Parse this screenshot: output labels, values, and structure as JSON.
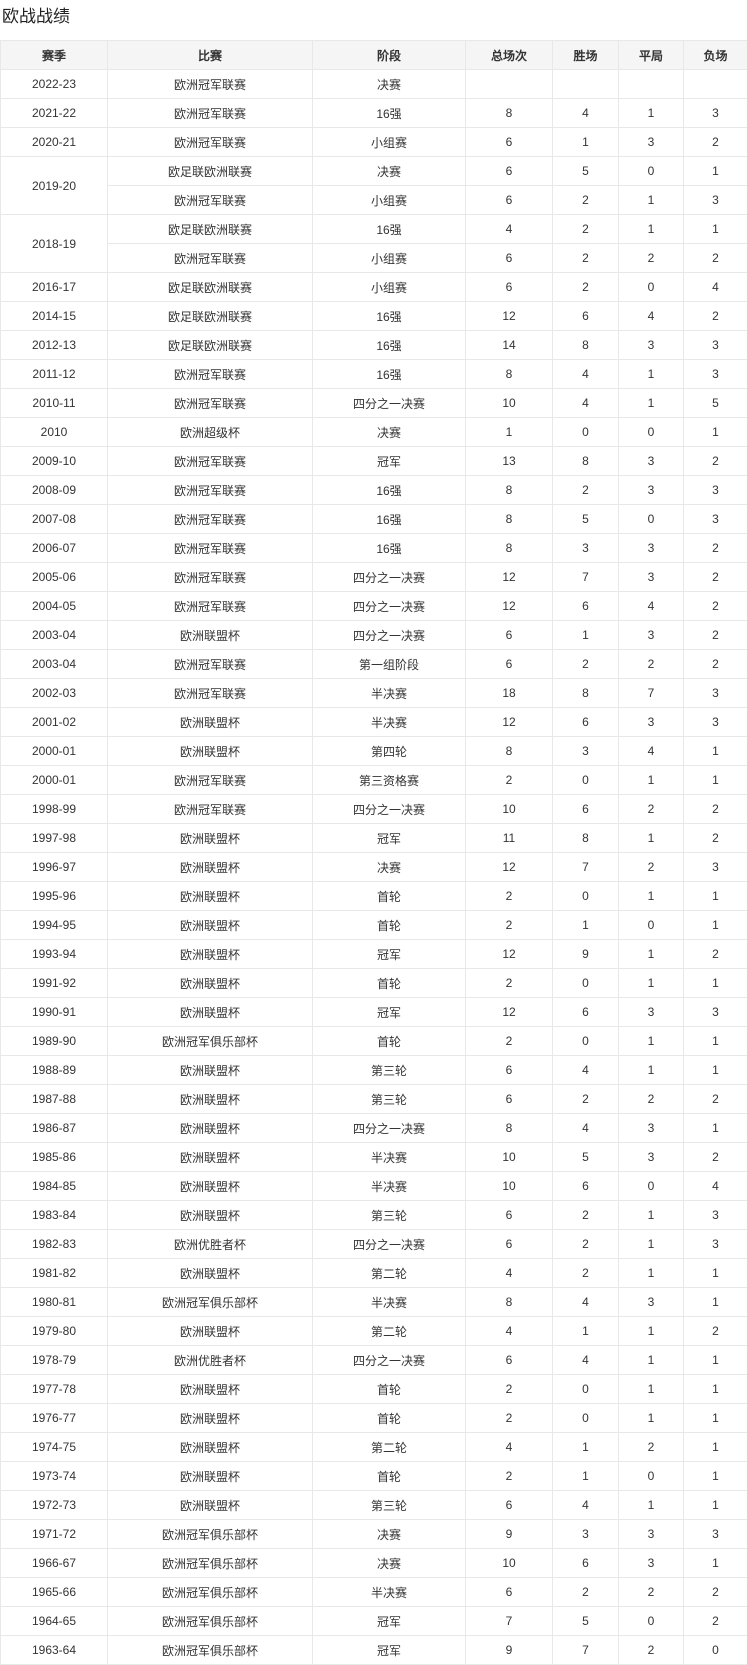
{
  "page": {
    "title": "欧战战绩"
  },
  "colors": {
    "header_background": "#f5f5f5",
    "border": "#e8e8e8",
    "text": "#333333"
  },
  "table": {
    "columns": [
      {
        "key": "season",
        "label": "赛季"
      },
      {
        "key": "competition",
        "label": "比赛"
      },
      {
        "key": "stage",
        "label": "阶段"
      },
      {
        "key": "total",
        "label": "总场次"
      },
      {
        "key": "wins",
        "label": "胜场"
      },
      {
        "key": "draws",
        "label": "平局"
      },
      {
        "key": "losses",
        "label": "负场"
      }
    ],
    "rows": [
      {
        "season": "2022-23",
        "competition": "欧洲冠军联赛",
        "stage": "决赛",
        "total": "",
        "wins": "",
        "draws": "",
        "losses": ""
      },
      {
        "season": "2021-22",
        "competition": "欧洲冠军联赛",
        "stage": "16强",
        "total": "8",
        "wins": "4",
        "draws": "1",
        "losses": "3"
      },
      {
        "season": "2020-21",
        "competition": "欧洲冠军联赛",
        "stage": "小组赛",
        "total": "6",
        "wins": "1",
        "draws": "3",
        "losses": "2"
      },
      {
        "season": "2019-20",
        "season_rowspan": 2,
        "competition": "欧足联欧洲联赛",
        "stage": "决赛",
        "total": "6",
        "wins": "5",
        "draws": "0",
        "losses": "1"
      },
      {
        "season": null,
        "competition": "欧洲冠军联赛",
        "stage": "小组赛",
        "total": "6",
        "wins": "2",
        "draws": "1",
        "losses": "3"
      },
      {
        "season": "2018-19",
        "season_rowspan": 2,
        "competition": "欧足联欧洲联赛",
        "stage": "16强",
        "total": "4",
        "wins": "2",
        "draws": "1",
        "losses": "1"
      },
      {
        "season": null,
        "competition": "欧洲冠军联赛",
        "stage": "小组赛",
        "total": "6",
        "wins": "2",
        "draws": "2",
        "losses": "2"
      },
      {
        "season": "2016-17",
        "competition": "欧足联欧洲联赛",
        "stage": "小组赛",
        "total": "6",
        "wins": "2",
        "draws": "0",
        "losses": "4"
      },
      {
        "season": "2014-15",
        "competition": "欧足联欧洲联赛",
        "stage": "16强",
        "total": "12",
        "wins": "6",
        "draws": "4",
        "losses": "2"
      },
      {
        "season": "2012-13",
        "competition": "欧足联欧洲联赛",
        "stage": "16强",
        "total": "14",
        "wins": "8",
        "draws": "3",
        "losses": "3"
      },
      {
        "season": "2011-12",
        "competition": "欧洲冠军联赛",
        "stage": "16强",
        "total": "8",
        "wins": "4",
        "draws": "1",
        "losses": "3"
      },
      {
        "season": "2010-11",
        "competition": "欧洲冠军联赛",
        "stage": "四分之一决赛",
        "total": "10",
        "wins": "4",
        "draws": "1",
        "losses": "5"
      },
      {
        "season": "2010",
        "competition": "欧洲超级杯",
        "stage": "决赛",
        "total": "1",
        "wins": "0",
        "draws": "0",
        "losses": "1"
      },
      {
        "season": "2009-10",
        "competition": "欧洲冠军联赛",
        "stage": "冠军",
        "total": "13",
        "wins": "8",
        "draws": "3",
        "losses": "2"
      },
      {
        "season": "2008-09",
        "competition": "欧洲冠军联赛",
        "stage": "16强",
        "total": "8",
        "wins": "2",
        "draws": "3",
        "losses": "3"
      },
      {
        "season": "2007-08",
        "competition": "欧洲冠军联赛",
        "stage": "16强",
        "total": "8",
        "wins": "5",
        "draws": "0",
        "losses": "3"
      },
      {
        "season": "2006-07",
        "competition": "欧洲冠军联赛",
        "stage": "16强",
        "total": "8",
        "wins": "3",
        "draws": "3",
        "losses": "2"
      },
      {
        "season": "2005-06",
        "competition": "欧洲冠军联赛",
        "stage": "四分之一决赛",
        "total": "12",
        "wins": "7",
        "draws": "3",
        "losses": "2"
      },
      {
        "season": "2004-05",
        "competition": "欧洲冠军联赛",
        "stage": "四分之一决赛",
        "total": "12",
        "wins": "6",
        "draws": "4",
        "losses": "2"
      },
      {
        "season": "2003-04",
        "competition": "欧洲联盟杯",
        "stage": "四分之一决赛",
        "total": "6",
        "wins": "1",
        "draws": "3",
        "losses": "2"
      },
      {
        "season": "2003-04",
        "competition": "欧洲冠军联赛",
        "stage": "第一组阶段",
        "total": "6",
        "wins": "2",
        "draws": "2",
        "losses": "2"
      },
      {
        "season": "2002-03",
        "competition": "欧洲冠军联赛",
        "stage": "半决赛",
        "total": "18",
        "wins": "8",
        "draws": "7",
        "losses": "3"
      },
      {
        "season": "2001-02",
        "competition": "欧洲联盟杯",
        "stage": "半决赛",
        "total": "12",
        "wins": "6",
        "draws": "3",
        "losses": "3"
      },
      {
        "season": "2000-01",
        "competition": "欧洲联盟杯",
        "stage": "第四轮",
        "total": "8",
        "wins": "3",
        "draws": "4",
        "losses": "1"
      },
      {
        "season": "2000-01",
        "competition": "欧洲冠军联赛",
        "stage": "第三资格赛",
        "total": "2",
        "wins": "0",
        "draws": "1",
        "losses": "1"
      },
      {
        "season": "1998-99",
        "competition": "欧洲冠军联赛",
        "stage": "四分之一决赛",
        "total": "10",
        "wins": "6",
        "draws": "2",
        "losses": "2"
      },
      {
        "season": "1997-98",
        "competition": "欧洲联盟杯",
        "stage": "冠军",
        "total": "11",
        "wins": "8",
        "draws": "1",
        "losses": "2"
      },
      {
        "season": "1996-97",
        "competition": "欧洲联盟杯",
        "stage": "决赛",
        "total": "12",
        "wins": "7",
        "draws": "2",
        "losses": "3"
      },
      {
        "season": "1995-96",
        "competition": "欧洲联盟杯",
        "stage": "首轮",
        "total": "2",
        "wins": "0",
        "draws": "1",
        "losses": "1"
      },
      {
        "season": "1994-95",
        "competition": "欧洲联盟杯",
        "stage": "首轮",
        "total": "2",
        "wins": "1",
        "draws": "0",
        "losses": "1"
      },
      {
        "season": "1993-94",
        "competition": "欧洲联盟杯",
        "stage": "冠军",
        "total": "12",
        "wins": "9",
        "draws": "1",
        "losses": "2"
      },
      {
        "season": "1991-92",
        "competition": "欧洲联盟杯",
        "stage": "首轮",
        "total": "2",
        "wins": "0",
        "draws": "1",
        "losses": "1"
      },
      {
        "season": "1990-91",
        "competition": "欧洲联盟杯",
        "stage": "冠军",
        "total": "12",
        "wins": "6",
        "draws": "3",
        "losses": "3"
      },
      {
        "season": "1989-90",
        "competition": "欧洲冠军俱乐部杯",
        "stage": "首轮",
        "total": "2",
        "wins": "0",
        "draws": "1",
        "losses": "1"
      },
      {
        "season": "1988-89",
        "competition": "欧洲联盟杯",
        "stage": "第三轮",
        "total": "6",
        "wins": "4",
        "draws": "1",
        "losses": "1"
      },
      {
        "season": "1987-88",
        "competition": "欧洲联盟杯",
        "stage": "第三轮",
        "total": "6",
        "wins": "2",
        "draws": "2",
        "losses": "2"
      },
      {
        "season": "1986-87",
        "competition": "欧洲联盟杯",
        "stage": "四分之一决赛",
        "total": "8",
        "wins": "4",
        "draws": "3",
        "losses": "1"
      },
      {
        "season": "1985-86",
        "competition": "欧洲联盟杯",
        "stage": "半决赛",
        "total": "10",
        "wins": "5",
        "draws": "3",
        "losses": "2"
      },
      {
        "season": "1984-85",
        "competition": "欧洲联盟杯",
        "stage": "半决赛",
        "total": "10",
        "wins": "6",
        "draws": "0",
        "losses": "4"
      },
      {
        "season": "1983-84",
        "competition": "欧洲联盟杯",
        "stage": "第三轮",
        "total": "6",
        "wins": "2",
        "draws": "1",
        "losses": "3"
      },
      {
        "season": "1982-83",
        "competition": "欧洲优胜者杯",
        "stage": "四分之一决赛",
        "total": "6",
        "wins": "2",
        "draws": "1",
        "losses": "3"
      },
      {
        "season": "1981-82",
        "competition": "欧洲联盟杯",
        "stage": "第二轮",
        "total": "4",
        "wins": "2",
        "draws": "1",
        "losses": "1"
      },
      {
        "season": "1980-81",
        "competition": "欧洲冠军俱乐部杯",
        "stage": "半决赛",
        "total": "8",
        "wins": "4",
        "draws": "3",
        "losses": "1"
      },
      {
        "season": "1979-80",
        "competition": "欧洲联盟杯",
        "stage": "第二轮",
        "total": "4",
        "wins": "1",
        "draws": "1",
        "losses": "2"
      },
      {
        "season": "1978-79",
        "competition": "欧洲优胜者杯",
        "stage": "四分之一决赛",
        "total": "6",
        "wins": "4",
        "draws": "1",
        "losses": "1"
      },
      {
        "season": "1977-78",
        "competition": "欧洲联盟杯",
        "stage": "首轮",
        "total": "2",
        "wins": "0",
        "draws": "1",
        "losses": "1"
      },
      {
        "season": "1976-77",
        "competition": "欧洲联盟杯",
        "stage": "首轮",
        "total": "2",
        "wins": "0",
        "draws": "1",
        "losses": "1"
      },
      {
        "season": "1974-75",
        "competition": "欧洲联盟杯",
        "stage": "第二轮",
        "total": "4",
        "wins": "1",
        "draws": "2",
        "losses": "1"
      },
      {
        "season": "1973-74",
        "competition": "欧洲联盟杯",
        "stage": "首轮",
        "total": "2",
        "wins": "1",
        "draws": "0",
        "losses": "1"
      },
      {
        "season": "1972-73",
        "competition": "欧洲联盟杯",
        "stage": "第三轮",
        "total": "6",
        "wins": "4",
        "draws": "1",
        "losses": "1"
      },
      {
        "season": "1971-72",
        "competition": "欧洲冠军俱乐部杯",
        "stage": "决赛",
        "total": "9",
        "wins": "3",
        "draws": "3",
        "losses": "3"
      },
      {
        "season": "1966-67",
        "competition": "欧洲冠军俱乐部杯",
        "stage": "决赛",
        "total": "10",
        "wins": "6",
        "draws": "3",
        "losses": "1"
      },
      {
        "season": "1965-66",
        "competition": "欧洲冠军俱乐部杯",
        "stage": "半决赛",
        "total": "6",
        "wins": "2",
        "draws": "2",
        "losses": "2"
      },
      {
        "season": "1964-65",
        "competition": "欧洲冠军俱乐部杯",
        "stage": "冠军",
        "total": "7",
        "wins": "5",
        "draws": "0",
        "losses": "2"
      },
      {
        "season": "1963-64",
        "competition": "欧洲冠军俱乐部杯",
        "stage": "冠军",
        "total": "9",
        "wins": "7",
        "draws": "2",
        "losses": "0"
      }
    ]
  }
}
